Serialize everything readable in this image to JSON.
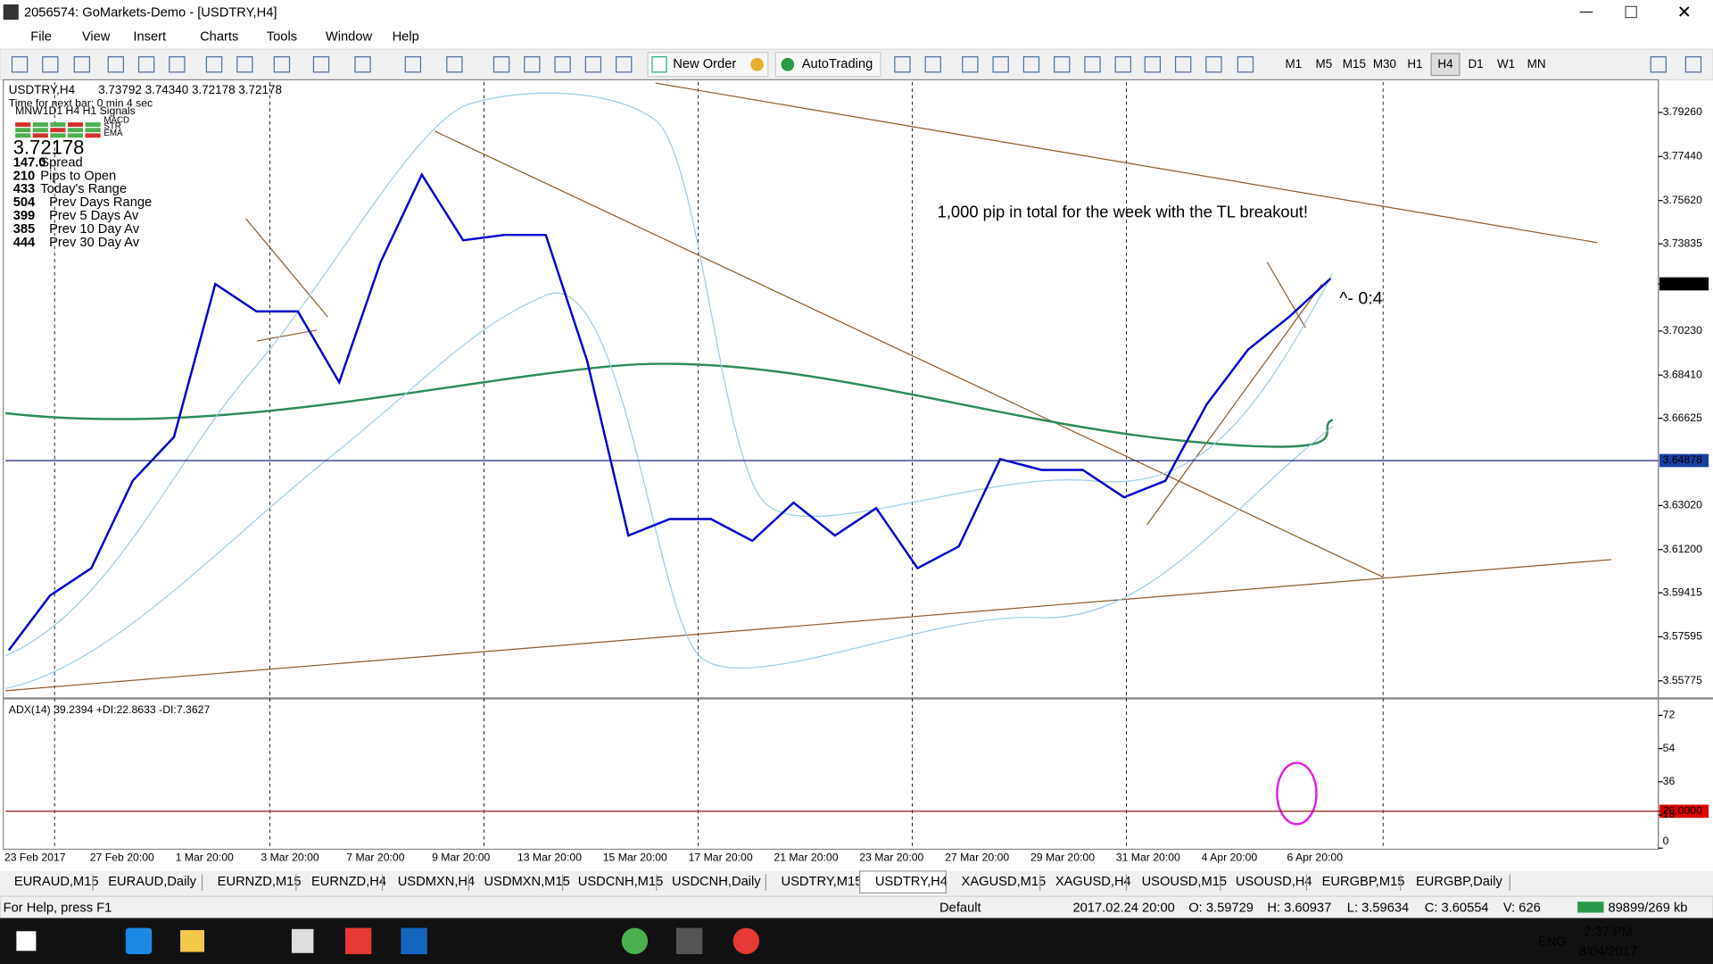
{
  "window": {
    "title": "2056574: GoMarkets-Demo - [USDTRY,H4]"
  },
  "menu": [
    "File",
    "View",
    "Insert",
    "Charts",
    "Tools",
    "Window",
    "Help"
  ],
  "toolbar": {
    "new_order": "New Order",
    "autotrading": "AutoTrading",
    "timeframes": [
      "M1",
      "M5",
      "M15",
      "M30",
      "H1",
      "H4",
      "D1",
      "W1",
      "MN"
    ],
    "active_timeframe": 5
  },
  "overlay": {
    "timer": "Time for next bar: 0 min 4 sec",
    "signals": "MNW1D1 H4 H1 Signals",
    "indicators": [
      "MACD",
      "STR",
      "EMA"
    ],
    "price": "3.72178",
    "stats": [
      {
        "value": "147.0",
        "label": "Spread"
      },
      {
        "value": 210,
        "label": "Pips to Open"
      },
      {
        "value": 433,
        "label": "Today's Range"
      },
      {
        "value": 504,
        "label": "Prev Days Range"
      },
      {
        "value": 399,
        "label": "Prev 5 Days Av"
      },
      {
        "value": 385,
        "label": "Prev 10 Day Av"
      },
      {
        "value": 444,
        "label": "Prev 30 Day Av"
      }
    ]
  },
  "chart_data": {
    "type": "line",
    "title": "USDTRY,H4",
    "header_values": "3.73792 3.74340 3.72178 3.72178",
    "annotation": "1,000 pip in total for the week with the TL breakout!",
    "annotation_2": "^- 0:4",
    "color": "#0000cc",
    "values": [
      3.5704,
      3.593,
      3.6043,
      3.6404,
      3.6585,
      3.7217,
      3.7104,
      3.7104,
      3.6811,
      3.7307,
      3.7669,
      3.7398,
      3.742,
      3.742,
      3.6901,
      3.6178,
      3.6246,
      3.6246,
      3.6156,
      3.6314,
      3.6178,
      3.6291,
      3.6043,
      3.6133,
      3.6494,
      3.6449,
      3.6449,
      3.6336,
      3.6404,
      3.672,
      3.6946,
      3.7082,
      3.724
    ],
    "xticks": [
      "23 Feb 2017",
      "27 Feb 20:00",
      "1 Mar 20:00",
      "3 Mar 20:00",
      "7 Mar 20:00",
      "9 Mar 20:00",
      "13 Mar 20:00",
      "15 Mar 20:00",
      "17 Mar 20:00",
      "21 Mar 20:00",
      "23 Mar 20:00",
      "27 Mar 20:00",
      "29 Mar 20:00",
      "31 Mar 20:00",
      "4 Apr 20:00",
      "6 Apr 20:00"
    ],
    "ylim": [
      3.5514,
      3.8052
    ],
    "yticks": [
      {
        "value": 3.7926,
        "label": "3.79260"
      },
      {
        "value": 3.7744,
        "label": "3.77440"
      },
      {
        "value": 3.7562,
        "label": "3.75620"
      },
      3.73835,
      {
        "value": 3.7023,
        "label": "3.70230"
      },
      {
        "value": 3.6841,
        "label": "3.68410"
      },
      3.66625,
      {
        "value": 3.6302,
        "label": "3.63020"
      },
      {
        "value": 3.612,
        "label": "3.61200"
      },
      3.59415,
      3.57595,
      3.55775
    ],
    "bid": 3.72178,
    "level": 3.64878,
    "adx": {
      "title": "ADX(14) 39.2394 +DI:22.8633 -DI:7.3627",
      "ylim": [
        0,
        80
      ],
      "yticks": [
        72,
        54,
        36,
        {
          "value": 20,
          "label": "20.0000"
        },
        18,
        0
      ]
    }
  },
  "tabs": [
    "EURAUD,M15",
    "EURAUD,Daily",
    "EURNZD,M15",
    "EURNZD,H4",
    "USDMXN,H4",
    "USDMXN,M15",
    "USDCNH,M15",
    "USDCNH,Daily",
    "USDTRY,M15",
    "USDTRY,H4",
    "XAGUSD,M15",
    "XAGUSD,H4",
    "USOUSD,M15",
    "USOUSD,H4",
    "EURGBP,M15",
    "EURGBP,Daily"
  ],
  "active_tab": 9,
  "status": {
    "help": "For Help, press F1",
    "profile": "Default",
    "time": "2017.02.24 20:00",
    "open": "O: 3.59729",
    "high": "H: 3.60937",
    "low": "L: 3.59634",
    "close": "C: 3.60554",
    "volume": "V: 626",
    "traffic": "89899/269 kb"
  },
  "taskbar": {
    "lang": "ENG",
    "time": "2:37 PM",
    "date": "8/04/2017"
  }
}
